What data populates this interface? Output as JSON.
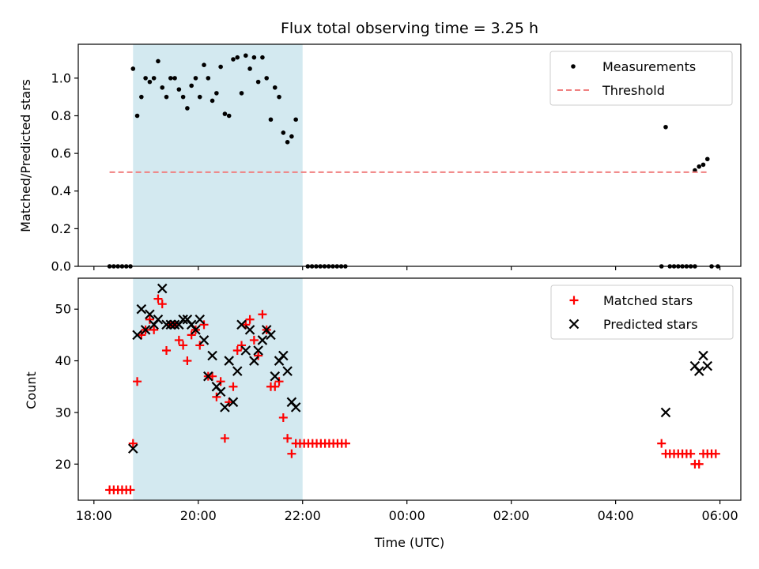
{
  "chart_data": [
    {
      "type": "scatter",
      "title": "Flux total observing time = 3.25 h",
      "ylabel": "Matched/Predicted stars",
      "xlabel": "",
      "x_unit": "hours since 18:00 UTC",
      "xlim": [
        -0.3,
        12.4
      ],
      "ylim": [
        0,
        1.18
      ],
      "yticks": [
        0.0,
        0.2,
        0.4,
        0.6,
        0.8,
        1.0
      ],
      "ytick_labels": [
        "0.0",
        "0.2",
        "0.4",
        "0.6",
        "0.8",
        "1.0"
      ],
      "shaded_span": [
        0.75,
        4.0
      ],
      "shade_color": "#d3e9f0",
      "legend": {
        "placement": "top-right",
        "entries": [
          "Measurements",
          "Threshold"
        ]
      },
      "series": [
        {
          "name": "Measurements",
          "marker": "dot",
          "color": "#000000",
          "points": [
            [
              0.3,
              0
            ],
            [
              0.38,
              0
            ],
            [
              0.46,
              0
            ],
            [
              0.54,
              0
            ],
            [
              0.62,
              0
            ],
            [
              0.7,
              0
            ],
            [
              0.75,
              1.05
            ],
            [
              0.83,
              0.8
            ],
            [
              0.91,
              0.9
            ],
            [
              0.99,
              1.0
            ],
            [
              1.07,
              0.98
            ],
            [
              1.15,
              1.0
            ],
            [
              1.23,
              1.09
            ],
            [
              1.31,
              0.95
            ],
            [
              1.39,
              0.9
            ],
            [
              1.47,
              1.0
            ],
            [
              1.55,
              1.0
            ],
            [
              1.63,
              0.94
            ],
            [
              1.71,
              0.9
            ],
            [
              1.79,
              0.84
            ],
            [
              1.87,
              0.96
            ],
            [
              1.95,
              1.0
            ],
            [
              2.03,
              0.9
            ],
            [
              2.11,
              1.07
            ],
            [
              2.19,
              1.0
            ],
            [
              2.27,
              0.88
            ],
            [
              2.35,
              0.92
            ],
            [
              2.43,
              1.06
            ],
            [
              2.51,
              0.81
            ],
            [
              2.59,
              0.8
            ],
            [
              2.67,
              1.1
            ],
            [
              2.75,
              1.11
            ],
            [
              2.83,
              0.92
            ],
            [
              2.91,
              1.12
            ],
            [
              2.99,
              1.05
            ],
            [
              3.07,
              1.11
            ],
            [
              3.15,
              0.98
            ],
            [
              3.23,
              1.11
            ],
            [
              3.31,
              1.0
            ],
            [
              3.39,
              0.78
            ],
            [
              3.47,
              0.95
            ],
            [
              3.55,
              0.9
            ],
            [
              3.63,
              0.71
            ],
            [
              3.71,
              0.66
            ],
            [
              3.79,
              0.69
            ],
            [
              3.87,
              0.78
            ],
            [
              4.1,
              0
            ],
            [
              4.18,
              0
            ],
            [
              4.26,
              0
            ],
            [
              4.34,
              0
            ],
            [
              4.42,
              0
            ],
            [
              4.5,
              0
            ],
            [
              4.58,
              0
            ],
            [
              4.66,
              0
            ],
            [
              4.74,
              0
            ],
            [
              4.82,
              0
            ],
            [
              10.88,
              0
            ],
            [
              10.96,
              0.74
            ],
            [
              11.04,
              0
            ],
            [
              11.12,
              0
            ],
            [
              11.2,
              0
            ],
            [
              11.28,
              0
            ],
            [
              11.36,
              0
            ],
            [
              11.44,
              0
            ],
            [
              11.52,
              0
            ],
            [
              11.52,
              0.51
            ],
            [
              11.6,
              0.53
            ],
            [
              11.68,
              0.54
            ],
            [
              11.76,
              0.57
            ],
            [
              11.84,
              0
            ],
            [
              11.96,
              0
            ]
          ]
        },
        {
          "name": "Threshold",
          "marker": "dashed-line",
          "color": "#f08080",
          "points": [
            [
              0.3,
              0.5
            ],
            [
              11.8,
              0.5
            ]
          ]
        }
      ]
    },
    {
      "type": "scatter",
      "title": "",
      "ylabel": "Count",
      "xlabel": "Time (UTC)",
      "x_unit": "hours since 18:00 UTC",
      "xlim": [
        -0.3,
        12.4
      ],
      "ylim": [
        13,
        56
      ],
      "yticks": [
        20,
        30,
        40,
        50
      ],
      "ytick_labels": [
        "20",
        "30",
        "40",
        "50"
      ],
      "xticks": [
        0,
        2,
        4,
        6,
        8,
        10,
        12
      ],
      "xtick_labels": [
        "18:00",
        "20:00",
        "22:00",
        "00:00",
        "02:00",
        "04:00",
        "06:00"
      ],
      "shaded_span": [
        0.75,
        4.0
      ],
      "shade_color": "#d3e9f0",
      "legend": {
        "placement": "top-right",
        "entries": [
          "Matched stars",
          "Predicted stars"
        ]
      },
      "series": [
        {
          "name": "Matched stars",
          "marker": "plus",
          "color": "#ff0000",
          "points": [
            [
              0.3,
              15
            ],
            [
              0.38,
              15
            ],
            [
              0.46,
              15
            ],
            [
              0.54,
              15
            ],
            [
              0.62,
              15
            ],
            [
              0.7,
              15
            ],
            [
              0.75,
              24
            ],
            [
              0.83,
              36
            ],
            [
              0.91,
              45
            ],
            [
              0.99,
              46
            ],
            [
              1.07,
              48
            ],
            [
              1.15,
              46
            ],
            [
              1.23,
              52
            ],
            [
              1.31,
              51
            ],
            [
              1.39,
              42
            ],
            [
              1.47,
              47
            ],
            [
              1.55,
              47
            ],
            [
              1.63,
              44
            ],
            [
              1.71,
              43
            ],
            [
              1.79,
              40
            ],
            [
              1.87,
              45
            ],
            [
              1.95,
              46
            ],
            [
              2.03,
              43
            ],
            [
              2.11,
              47
            ],
            [
              2.19,
              37
            ],
            [
              2.27,
              37
            ],
            [
              2.35,
              33
            ],
            [
              2.43,
              36
            ],
            [
              2.51,
              25
            ],
            [
              2.59,
              32
            ],
            [
              2.67,
              35
            ],
            [
              2.75,
              42
            ],
            [
              2.83,
              43
            ],
            [
              2.91,
              47
            ],
            [
              2.99,
              48
            ],
            [
              3.07,
              44
            ],
            [
              3.15,
              41
            ],
            [
              3.23,
              49
            ],
            [
              3.31,
              46
            ],
            [
              3.39,
              35
            ],
            [
              3.47,
              35
            ],
            [
              3.55,
              36
            ],
            [
              3.63,
              29
            ],
            [
              3.71,
              25
            ],
            [
              3.79,
              22
            ],
            [
              3.87,
              24
            ],
            [
              3.95,
              24
            ],
            [
              4.03,
              24
            ],
            [
              4.11,
              24
            ],
            [
              4.19,
              24
            ],
            [
              4.27,
              24
            ],
            [
              4.35,
              24
            ],
            [
              4.43,
              24
            ],
            [
              4.51,
              24
            ],
            [
              4.59,
              24
            ],
            [
              4.67,
              24
            ],
            [
              4.75,
              24
            ],
            [
              4.83,
              24
            ],
            [
              10.88,
              24
            ],
            [
              10.96,
              22
            ],
            [
              11.04,
              22
            ],
            [
              11.12,
              22
            ],
            [
              11.2,
              22
            ],
            [
              11.28,
              22
            ],
            [
              11.36,
              22
            ],
            [
              11.44,
              22
            ],
            [
              11.52,
              20
            ],
            [
              11.6,
              20
            ],
            [
              11.68,
              22
            ],
            [
              11.76,
              22
            ],
            [
              11.84,
              22
            ],
            [
              11.92,
              22
            ]
          ]
        },
        {
          "name": "Predicted stars",
          "marker": "x",
          "color": "#000000",
          "points": [
            [
              0.75,
              23
            ],
            [
              0.83,
              45
            ],
            [
              0.91,
              50
            ],
            [
              0.99,
              46
            ],
            [
              1.07,
              49
            ],
            [
              1.15,
              47
            ],
            [
              1.23,
              48
            ],
            [
              1.31,
              54
            ],
            [
              1.39,
              47
            ],
            [
              1.47,
              47
            ],
            [
              1.55,
              47
            ],
            [
              1.63,
              47
            ],
            [
              1.71,
              48
            ],
            [
              1.79,
              48
            ],
            [
              1.87,
              47
            ],
            [
              1.95,
              46
            ],
            [
              2.03,
              48
            ],
            [
              2.11,
              44
            ],
            [
              2.19,
              37
            ],
            [
              2.27,
              41
            ],
            [
              2.35,
              35
            ],
            [
              2.43,
              34
            ],
            [
              2.51,
              31
            ],
            [
              2.59,
              40
            ],
            [
              2.67,
              32
            ],
            [
              2.75,
              38
            ],
            [
              2.83,
              47
            ],
            [
              2.91,
              42
            ],
            [
              2.99,
              46
            ],
            [
              3.07,
              40
            ],
            [
              3.15,
              42
            ],
            [
              3.23,
              44
            ],
            [
              3.31,
              46
            ],
            [
              3.39,
              45
            ],
            [
              3.47,
              37
            ],
            [
              3.55,
              40
            ],
            [
              3.63,
              41
            ],
            [
              3.71,
              38
            ],
            [
              3.79,
              32
            ],
            [
              3.87,
              31
            ],
            [
              10.96,
              30
            ],
            [
              11.52,
              39
            ],
            [
              11.6,
              38
            ],
            [
              11.68,
              41
            ],
            [
              11.76,
              39
            ]
          ]
        }
      ]
    }
  ]
}
